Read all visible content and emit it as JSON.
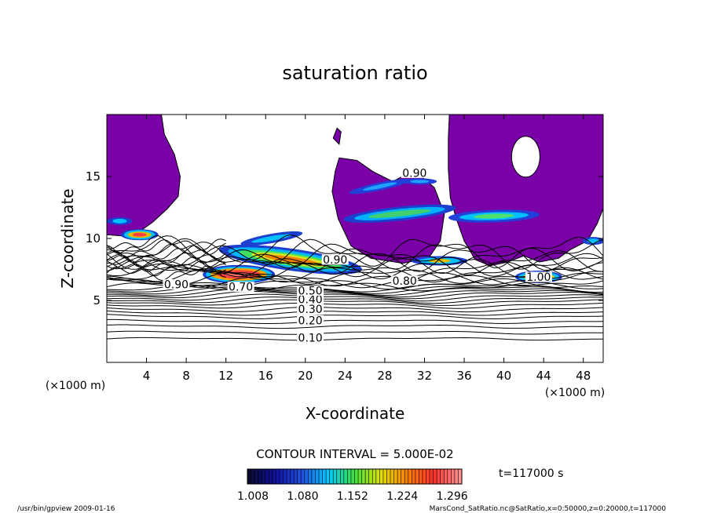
{
  "chart_data": {
    "type": "heatmap",
    "title": "saturation ratio",
    "xlabel": "X-coordinate",
    "ylabel": "Z-coordinate",
    "x_unit": "(×1000 m)",
    "y_unit": "(×1000 m)",
    "xlim": [
      0,
      50
    ],
    "ylim": [
      0,
      20
    ],
    "x_ticks": [
      4,
      8,
      12,
      16,
      20,
      24,
      28,
      32,
      36,
      40,
      44,
      48
    ],
    "y_ticks": [
      5,
      10,
      15
    ],
    "contour_interval_text": "CONTOUR INTERVAL = 5.000E-02",
    "time_text": "t=117000  s",
    "colorbar": {
      "min": 1.0,
      "max": 1.31,
      "labels": [
        "1.008",
        "1.080",
        "1.152",
        "1.224",
        "1.296"
      ],
      "colors": [
        "#0a0a30",
        "#1010a0",
        "#2050e0",
        "#00c8ff",
        "#40e040",
        "#e0e000",
        "#ff8000",
        "#ff3030",
        "#ff9090"
      ]
    },
    "saturated_fill_color": "#7a00a8",
    "contour_labels": [
      {
        "text": "0.10",
        "x": 20.5,
        "y": 1.9
      },
      {
        "text": "0.20",
        "x": 20.5,
        "y": 3.3
      },
      {
        "text": "0.30",
        "x": 20.5,
        "y": 4.2
      },
      {
        "text": "0.40",
        "x": 20.5,
        "y": 5.0
      },
      {
        "text": "0.50",
        "x": 20.5,
        "y": 5.7
      },
      {
        "text": "0.70",
        "x": 13.5,
        "y": 6.0
      },
      {
        "text": "0.90",
        "x": 7.0,
        "y": 6.2
      },
      {
        "text": "0.90",
        "x": 23.0,
        "y": 8.2
      },
      {
        "text": "0.80",
        "x": 30.0,
        "y": 6.5
      },
      {
        "text": "1.00",
        "x": 43.5,
        "y": 6.8
      },
      {
        "text": "0.90",
        "x": 31.0,
        "y": 15.2
      }
    ],
    "cloud_regions": [
      {
        "name": "upper-left saturated plume",
        "x": [
          0,
          7.5
        ],
        "y": [
          10.5,
          20
        ]
      },
      {
        "name": "upper-right saturated plume",
        "x": [
          34.5,
          50
        ],
        "y": [
          7.5,
          20
        ]
      },
      {
        "name": "central saturated plume",
        "x": [
          22,
          34
        ],
        "y": [
          7.5,
          16.5
        ]
      },
      {
        "name": "low-level cloud core",
        "x": [
          10,
          16.5
        ],
        "y": [
          6.5,
          7.7
        ]
      },
      {
        "name": "left cloud core",
        "x": [
          1.5,
          5.5
        ],
        "y": [
          9.8,
          10.8
        ]
      },
      {
        "name": "right cloud core",
        "x": [
          41.5,
          46
        ],
        "y": [
          6.5,
          7.5
        ]
      }
    ]
  },
  "footer": {
    "left": "/usr/bin/gpview   2009-01-16",
    "right": "MarsCond_SatRatio.nc@SatRatio,x=0:50000,z=0:20000,t=117000"
  }
}
